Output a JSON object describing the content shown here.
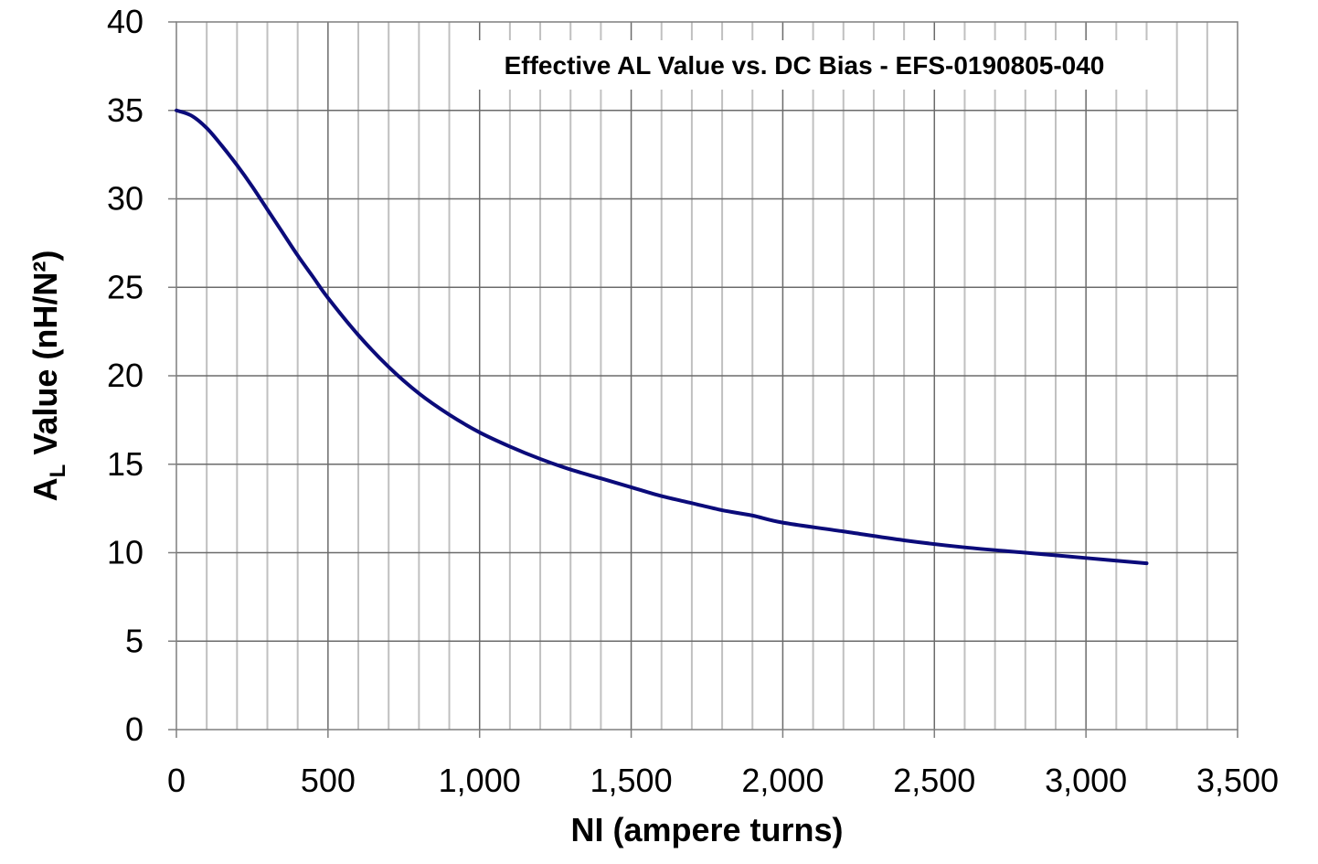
{
  "chart_data": {
    "type": "line",
    "title": "Effective AL Value vs. DC Bias - EFS-0190805-040",
    "xlabel": "NI (ampere turns)",
    "ylabel_main": "A",
    "ylabel_sub": "L",
    "ylabel_rest": " Value (nH/N²)",
    "xlim": [
      0,
      3500
    ],
    "ylim": [
      0,
      40
    ],
    "x_ticks": [
      0,
      500,
      1000,
      1500,
      2000,
      2500,
      3000,
      3500
    ],
    "x_tick_labels": [
      "0",
      "500",
      "1,000",
      "1,500",
      "2,000",
      "2,500",
      "3,000",
      "3,500"
    ],
    "y_ticks": [
      0,
      5,
      10,
      15,
      20,
      25,
      30,
      35,
      40
    ],
    "y_tick_labels": [
      "0",
      "5",
      "10",
      "15",
      "20",
      "25",
      "30",
      "35",
      "40"
    ],
    "minor_x_step": 100,
    "grid": true,
    "series": [
      {
        "color": "#0b0b7a",
        "x": [
          0,
          50,
          100,
          150,
          200,
          250,
          300,
          350,
          400,
          450,
          500,
          600,
          700,
          800,
          900,
          1000,
          1100,
          1200,
          1300,
          1400,
          1500,
          1600,
          1700,
          1800,
          1900,
          2000,
          2200,
          2400,
          2600,
          2800,
          3000,
          3200
        ],
        "y": [
          35.0,
          34.7,
          34.0,
          33.0,
          31.9,
          30.7,
          29.4,
          28.1,
          26.8,
          25.6,
          24.4,
          22.3,
          20.5,
          19.0,
          17.8,
          16.8,
          16.0,
          15.3,
          14.7,
          14.2,
          13.7,
          13.2,
          12.8,
          12.4,
          12.1,
          11.7,
          11.2,
          10.7,
          10.3,
          10.0,
          9.7,
          9.4
        ]
      }
    ]
  }
}
